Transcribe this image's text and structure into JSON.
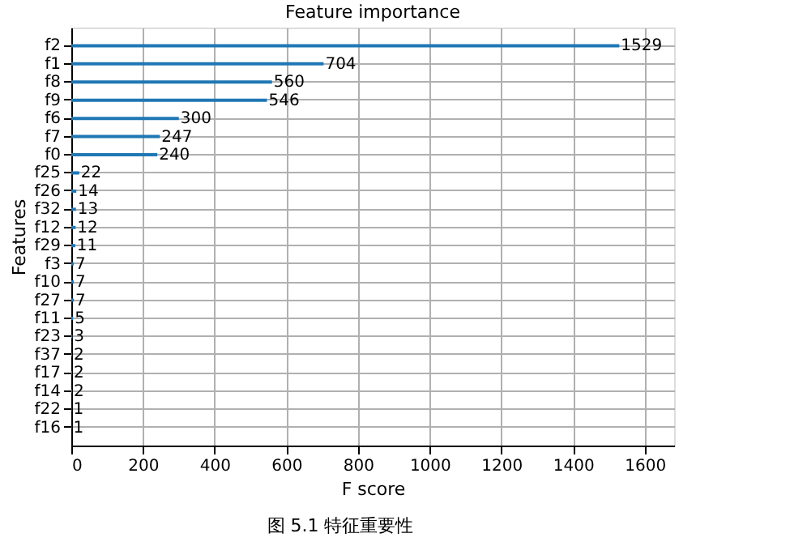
{
  "chart_data": {
    "type": "bar",
    "orientation": "horizontal",
    "title": "Feature importance",
    "xlabel": "F score",
    "ylabel": "Features",
    "categories": [
      "f2",
      "f1",
      "f8",
      "f9",
      "f6",
      "f7",
      "f0",
      "f25",
      "f26",
      "f32",
      "f12",
      "f29",
      "f3",
      "f10",
      "f27",
      "f11",
      "f23",
      "f37",
      "f17",
      "f14",
      "f22",
      "f16"
    ],
    "values": [
      1529,
      704,
      560,
      546,
      300,
      247,
      240,
      22,
      14,
      13,
      12,
      11,
      7,
      7,
      7,
      5,
      3,
      2,
      2,
      2,
      1,
      1
    ],
    "color": "#1f77b4",
    "xlim": [
      0,
      1682
    ],
    "xticks": [
      0,
      200,
      400,
      600,
      800,
      1000,
      1200,
      1400,
      1600
    ],
    "grid": true,
    "data_labels": true,
    "annotations": [
      "图 5.1 特征重要性"
    ]
  }
}
